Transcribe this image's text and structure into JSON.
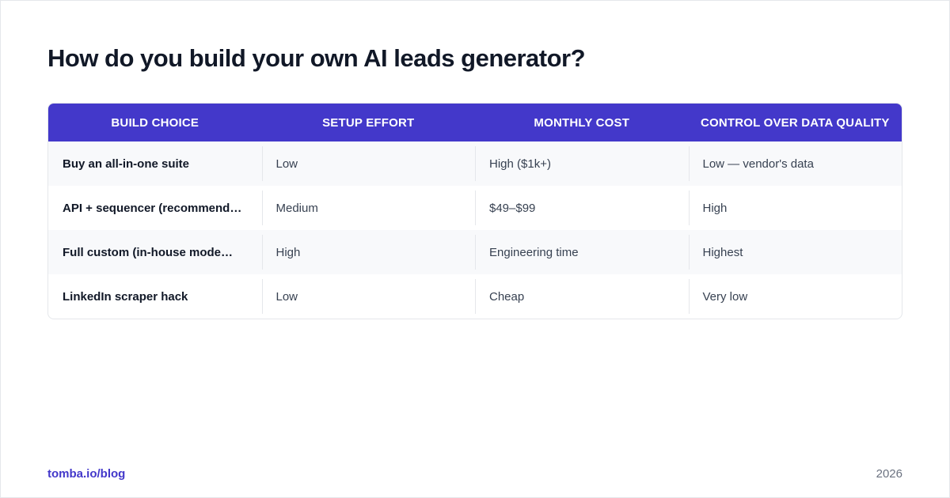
{
  "header": {
    "title": "How do you build your own AI leads generator?"
  },
  "table": {
    "columns": [
      "BUILD CHOICE",
      "SETUP EFFORT",
      "MONTHLY COST",
      "CONTROL OVER DATA QUALITY"
    ],
    "rows": [
      [
        "Buy an all-in-one suite",
        "Low",
        "High ($1k+)",
        "Low — vendor's data"
      ],
      [
        "API + sequencer (recommend…",
        "Medium",
        "$49–$99",
        "High"
      ],
      [
        "Full custom (in-house mode…",
        "High",
        "Engineering time",
        "Highest"
      ],
      [
        "LinkedIn scraper hack",
        "Low",
        "Cheap",
        "Very low"
      ]
    ]
  },
  "footer": {
    "source": "tomba.io/blog",
    "year": "2026"
  }
}
